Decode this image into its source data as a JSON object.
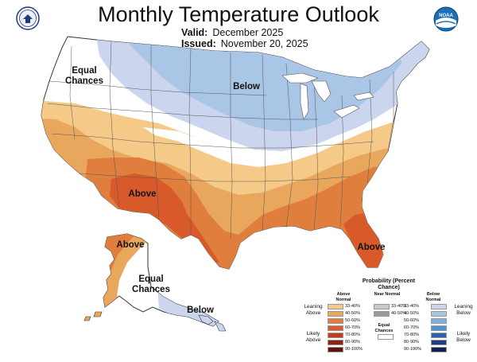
{
  "header": {
    "title": "Monthly Temperature Outlook",
    "valid_label": "Valid:",
    "valid_value": "December 2025",
    "issued_label": "Issued:",
    "issued_value": "November 20, 2025"
  },
  "logos": {
    "left": "doc-seal-icon",
    "right": "noaa-logo-icon",
    "noaa_text": "NOAA"
  },
  "map_labels": {
    "conus_equal": "Equal Chances",
    "conus_below": "Below",
    "conus_above_sw": "Above",
    "conus_above_fl": "Above",
    "ak_above": "Above",
    "ak_equal": "Equal Chances",
    "ak_below": "Below"
  },
  "legend": {
    "title": "Probability (Percent Chance)",
    "above_header": "Above Normal",
    "near_header": "Near Normal",
    "below_header": "Below Normal",
    "leaning_above": "Leaning Above",
    "likely_above": "Likely Above",
    "leaning_below": "Leaning Below",
    "likely_below": "Likely Below",
    "equal_chances": "Equal Chances",
    "bins": [
      "33-40%",
      "40-50%",
      "50-60%",
      "60-70%",
      "70-80%",
      "80-90%",
      "90-100%"
    ],
    "near_bins": [
      "33-40%",
      "40-50%"
    ],
    "above_colors": [
      "#f5c987",
      "#e9a75e",
      "#e07f3d",
      "#d85a2a",
      "#c23b1c",
      "#8f2312",
      "#5e1508"
    ],
    "below_colors": [
      "#cbd6ee",
      "#aac6e7",
      "#7fb0de",
      "#4c94d2",
      "#2a62b0",
      "#1d3d86",
      "#121f55"
    ],
    "near_colors": [
      "#c8c8c8",
      "#9a9a9a"
    ]
  }
}
